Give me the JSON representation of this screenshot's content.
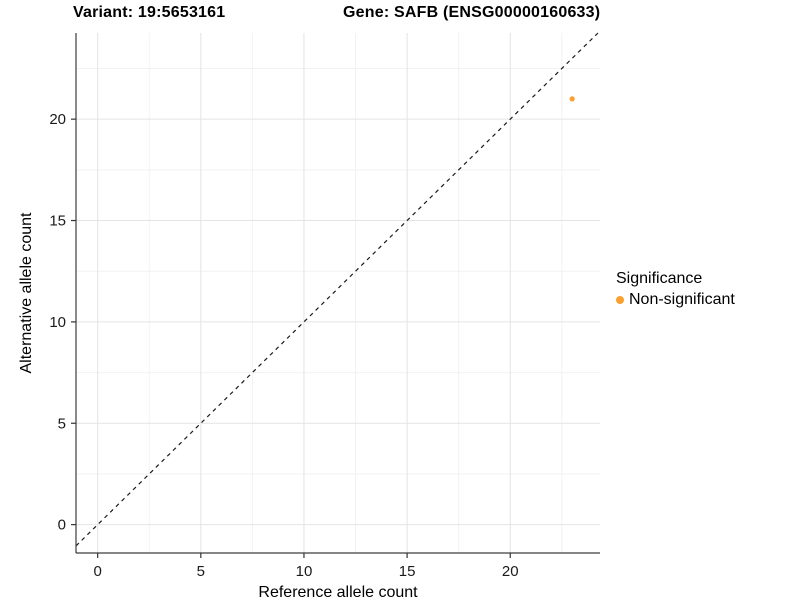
{
  "header": {
    "variant_title": "Variant: 19:5653161",
    "gene_title": "Gene: SAFB (ENSG00000160633)"
  },
  "chart_data": {
    "type": "scatter",
    "xlabel": "Reference allele count",
    "ylabel": "Alternative allele count",
    "x_ticks": [
      0,
      5,
      10,
      15,
      20
    ],
    "y_ticks": [
      0,
      5,
      10,
      15,
      20
    ],
    "xlim": [
      -1.05,
      24.35
    ],
    "ylim": [
      -1.4,
      24.25
    ],
    "grid": "major+minor",
    "reference_line": {
      "type": "identity y=x",
      "style": "dashed",
      "color": "#1a1a1a"
    },
    "series": [
      {
        "name": "Non-significant",
        "color": "#F9A02E",
        "points": [
          {
            "x": 23,
            "y": 21
          }
        ]
      }
    ],
    "legend": {
      "title": "Significance",
      "position": "right",
      "items": [
        {
          "label": "Non-significant",
          "color": "#F9A02E",
          "marker": "circle"
        }
      ]
    }
  },
  "style": {
    "grid_major": "#e4e4e4",
    "grid_minor": "#f2f2f2",
    "axis_line": "#3d3d3d",
    "tick": "#333333",
    "axis_text": "#1a1a1a",
    "point_radius": 2.6
  }
}
